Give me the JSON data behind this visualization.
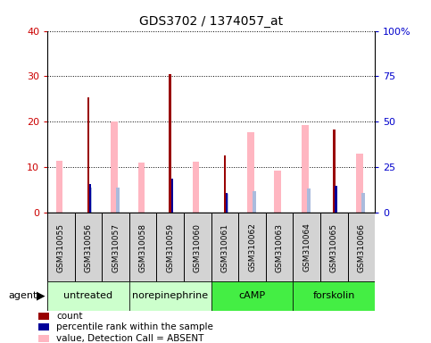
{
  "title": "GDS3702 / 1374057_at",
  "samples": [
    "GSM310055",
    "GSM310056",
    "GSM310057",
    "GSM310058",
    "GSM310059",
    "GSM310060",
    "GSM310061",
    "GSM310062",
    "GSM310063",
    "GSM310064",
    "GSM310065",
    "GSM310066"
  ],
  "count_values": [
    0,
    25.3,
    0,
    0,
    30.5,
    0,
    12.5,
    0,
    0,
    0,
    18.2,
    0
  ],
  "percentile_values": [
    0,
    16.0,
    0,
    0,
    18.5,
    0,
    11.0,
    0,
    0,
    0,
    15.0,
    0
  ],
  "value_absent": [
    11.5,
    0,
    20.0,
    11.0,
    0,
    11.2,
    0,
    17.8,
    9.2,
    19.2,
    0,
    13.0
  ],
  "rank_absent": [
    0,
    14.0,
    14.0,
    0,
    0,
    0,
    10.5,
    12.0,
    0,
    13.5,
    0,
    11.0
  ],
  "groups": [
    {
      "label": "untreated",
      "start": 0,
      "end": 3,
      "color": "#ccffcc"
    },
    {
      "label": "norepinephrine",
      "start": 3,
      "end": 6,
      "color": "#ccffcc"
    },
    {
      "label": "cAMP",
      "start": 6,
      "end": 9,
      "color": "#44ee44"
    },
    {
      "label": "forskolin",
      "start": 9,
      "end": 12,
      "color": "#44ee44"
    }
  ],
  "ylim_left": [
    0,
    40
  ],
  "ylim_right": [
    0,
    100
  ],
  "yticks_left": [
    0,
    10,
    20,
    30,
    40
  ],
  "yticks_right": [
    0,
    25,
    50,
    75,
    100
  ],
  "yticklabels_right": [
    "0",
    "25",
    "50",
    "75",
    "100%"
  ],
  "color_count": "#990000",
  "color_percentile": "#000099",
  "color_value_absent": "#FFB6C1",
  "color_rank_absent": "#aabbdd",
  "bar_width": 0.12,
  "background_plot": "#ffffff",
  "background_fig": "#ffffff",
  "background_xtick": "#d3d3d3",
  "grid_color": "black",
  "tick_color_left": "#cc0000",
  "tick_color_right": "#0000cc",
  "agent_label": "agent",
  "legend_items": [
    {
      "color": "#990000",
      "label": "count"
    },
    {
      "color": "#000099",
      "label": "percentile rank within the sample"
    },
    {
      "color": "#FFB6C1",
      "label": "value, Detection Call = ABSENT"
    },
    {
      "color": "#aabbdd",
      "label": "rank, Detection Call = ABSENT"
    }
  ]
}
